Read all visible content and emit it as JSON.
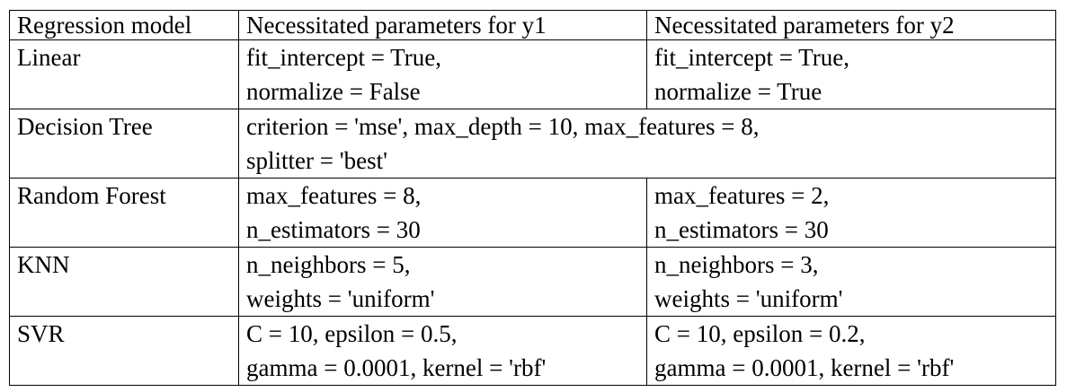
{
  "table": {
    "headers": [
      "Regression model",
      "Necessitated parameters for y1",
      "Necessitated parameters for y2"
    ],
    "rows": [
      {
        "model": "Linear",
        "y1": [
          "fit_intercept = True,",
          "normalize = False"
        ],
        "y2": [
          "fit_intercept = True,",
          "normalize = True"
        ]
      },
      {
        "model": "Decision Tree",
        "merged": [
          "criterion = 'mse', max_depth = 10, max_features = 8,",
          "splitter = 'best'"
        ]
      },
      {
        "model": "Random Forest",
        "y1": [
          "max_features = 8,",
          "n_estimators = 30"
        ],
        "y2": [
          "max_features = 2,",
          "n_estimators = 30"
        ]
      },
      {
        "model": "KNN",
        "y1": [
          "n_neighbors = 5,",
          "weights = 'uniform'"
        ],
        "y2": [
          "n_neighbors = 3,",
          "weights = 'uniform'"
        ]
      },
      {
        "model": "SVR",
        "y1": [
          "C = 10, epsilon = 0.5,",
          "gamma = 0.0001, kernel = 'rbf'"
        ],
        "y2": [
          "C = 10, epsilon = 0.2,",
          "gamma = 0.0001, kernel = 'rbf'"
        ]
      }
    ]
  }
}
